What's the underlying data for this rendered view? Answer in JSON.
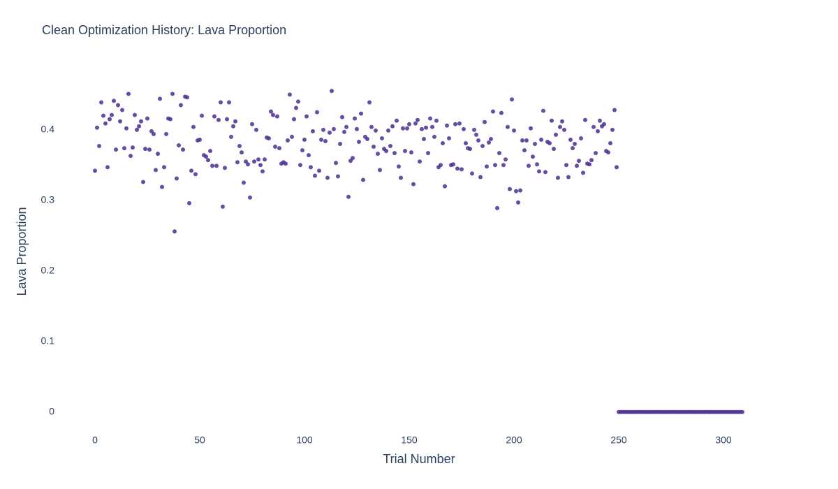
{
  "chart_data": {
    "type": "scatter",
    "title": "Clean Optimization History: Lava Proportion",
    "x_label": "Trial Number",
    "y_label": "Lava Proportion",
    "xlim": [
      -18.67,
      328
    ],
    "ylim": [
      -0.03,
      0.485
    ],
    "xticks": [
      0,
      50,
      100,
      150,
      200,
      250,
      300
    ],
    "yticks": [
      0,
      0.1,
      0.2,
      0.3,
      0.4
    ],
    "grid": false,
    "series": [
      {
        "color": "#4b2e91",
        "x": [
          0,
          1,
          2,
          3,
          4,
          5,
          6,
          7,
          8,
          9,
          10,
          11,
          12,
          13,
          14,
          15,
          16,
          17,
          18,
          19,
          20,
          21,
          22,
          23,
          24,
          25,
          26,
          27,
          28,
          29,
          30,
          31,
          32,
          33,
          34,
          35,
          36,
          37,
          38,
          39,
          40,
          41,
          42,
          43,
          44,
          45,
          46,
          47,
          48,
          49,
          50,
          51,
          52,
          53,
          54,
          55,
          56,
          57,
          58,
          59,
          60,
          61,
          62,
          63,
          64,
          65,
          66,
          67,
          68,
          69,
          70,
          71,
          72,
          73,
          74,
          75,
          76,
          77,
          78,
          79,
          80,
          81,
          82,
          83,
          84,
          85,
          86,
          87,
          88,
          89,
          90,
          91,
          92,
          93,
          94,
          95,
          96,
          97,
          98,
          99,
          100,
          101,
          102,
          103,
          104,
          105,
          106,
          107,
          108,
          109,
          110,
          111,
          112,
          113,
          114,
          115,
          116,
          117,
          118,
          119,
          120,
          121,
          122,
          123,
          124,
          125,
          126,
          127,
          128,
          129,
          130,
          131,
          132,
          133,
          134,
          135,
          136,
          137,
          138,
          139,
          140,
          141,
          142,
          143,
          144,
          145,
          146,
          147,
          148,
          149,
          150,
          151,
          152,
          153,
          154,
          155,
          156,
          157,
          158,
          159,
          160,
          161,
          162,
          163,
          164,
          165,
          166,
          167,
          168,
          169,
          170,
          171,
          172,
          173,
          174,
          175,
          176,
          177,
          178,
          179,
          180,
          181,
          182,
          183,
          184,
          185,
          186,
          187,
          188,
          189,
          190,
          191,
          192,
          193,
          194,
          195,
          196,
          197,
          198,
          199,
          200,
          201,
          202,
          203,
          204,
          205,
          206,
          207,
          208,
          209,
          210,
          211,
          212,
          213,
          214,
          215,
          216,
          217,
          218,
          219,
          220,
          221,
          222,
          223,
          224,
          225,
          226,
          227,
          228,
          229,
          230,
          231,
          232,
          233,
          234,
          235,
          236,
          237,
          238,
          239,
          240,
          241,
          242,
          243,
          244,
          245,
          246,
          247,
          248,
          249,
          250,
          251,
          252,
          253,
          254,
          255,
          256,
          257,
          258,
          259,
          260,
          261,
          262,
          263,
          264,
          265,
          266,
          267,
          268,
          269,
          270,
          271,
          272,
          273,
          274,
          275,
          276,
          277,
          278,
          279,
          280,
          281,
          282,
          283,
          284,
          285,
          286,
          287,
          288,
          289,
          290,
          291,
          292,
          293,
          294,
          295,
          296,
          297,
          298,
          299,
          300,
          301,
          302,
          303,
          304,
          305,
          306,
          307,
          308,
          309
        ],
        "values": [
          0.342,
          0.403,
          0.377,
          0.439,
          0.42,
          0.409,
          0.347,
          0.415,
          0.421,
          0.441,
          0.372,
          0.435,
          0.412,
          0.428,
          0.374,
          0.402,
          0.451,
          0.363,
          0.375,
          0.421,
          0.4,
          0.405,
          0.412,
          0.326,
          0.373,
          0.416,
          0.372,
          0.398,
          0.394,
          0.343,
          0.366,
          0.444,
          0.319,
          0.347,
          0.394,
          0.416,
          0.415,
          0.451,
          0.256,
          0.331,
          0.378,
          0.435,
          0.372,
          0.447,
          0.446,
          0.296,
          0.342,
          0.404,
          0.337,
          0.385,
          0.386,
          0.42,
          0.364,
          0.362,
          0.357,
          0.37,
          0.349,
          0.419,
          0.349,
          0.414,
          0.439,
          0.291,
          0.346,
          0.415,
          0.439,
          0.39,
          0.405,
          0.412,
          0.354,
          0.377,
          0.368,
          0.325,
          0.355,
          0.351,
          0.304,
          0.408,
          0.355,
          0.4,
          0.358,
          0.35,
          0.341,
          0.358,
          0.389,
          0.388,
          0.426,
          0.421,
          0.376,
          0.419,
          0.374,
          0.352,
          0.354,
          0.352,
          0.385,
          0.45,
          0.39,
          0.415,
          0.431,
          0.44,
          0.35,
          0.371,
          0.386,
          0.419,
          0.364,
          0.347,
          0.398,
          0.335,
          0.425,
          0.342,
          0.386,
          0.4,
          0.384,
          0.332,
          0.396,
          0.455,
          0.401,
          0.353,
          0.334,
          0.38,
          0.418,
          0.397,
          0.404,
          0.305,
          0.356,
          0.36,
          0.416,
          0.401,
          0.383,
          0.423,
          0.329,
          0.39,
          0.387,
          0.439,
          0.404,
          0.376,
          0.399,
          0.366,
          0.343,
          0.388,
          0.373,
          0.37,
          0.399,
          0.377,
          0.405,
          0.367,
          0.413,
          0.348,
          0.332,
          0.402,
          0.37,
          0.402,
          0.408,
          0.368,
          0.323,
          0.409,
          0.414,
          0.355,
          0.401,
          0.387,
          0.403,
          0.367,
          0.416,
          0.404,
          0.39,
          0.413,
          0.347,
          0.35,
          0.381,
          0.32,
          0.406,
          0.388,
          0.35,
          0.351,
          0.408,
          0.345,
          0.409,
          0.344,
          0.401,
          0.381,
          0.374,
          0.373,
          0.338,
          0.4,
          0.393,
          0.385,
          0.333,
          0.377,
          0.411,
          0.348,
          0.382,
          0.387,
          0.426,
          0.35,
          0.289,
          0.367,
          0.424,
          0.35,
          0.358,
          0.404,
          0.316,
          0.443,
          0.399,
          0.313,
          0.297,
          0.314,
          0.385,
          0.371,
          0.385,
          0.349,
          0.402,
          0.362,
          0.38,
          0.351,
          0.341,
          0.386,
          0.427,
          0.34,
          0.383,
          0.381,
          0.413,
          0.373,
          0.393,
          0.332,
          0.404,
          0.412,
          0.4,
          0.35,
          0.333,
          0.386,
          0.374,
          0.38,
          0.349,
          0.356,
          0.388,
          0.339,
          0.414,
          0.352,
          0.351,
          0.357,
          0.404,
          0.367,
          0.398,
          0.413,
          0.405,
          0.408,
          0.37,
          0.368,
          0.381,
          0.4,
          0.428,
          0.347,
          0,
          0,
          0,
          0,
          0,
          0,
          0,
          0,
          0,
          0,
          0,
          0,
          0,
          0,
          0,
          0,
          0,
          0,
          0,
          0,
          0,
          0,
          0,
          0,
          0,
          0,
          0,
          0,
          0,
          0,
          0,
          0,
          0,
          0,
          0,
          0,
          0,
          0,
          0,
          0,
          0,
          0,
          0,
          0,
          0,
          0,
          0,
          0,
          0,
          0,
          0,
          0,
          0,
          0,
          0,
          0,
          0,
          0,
          0,
          0
        ]
      }
    ]
  }
}
